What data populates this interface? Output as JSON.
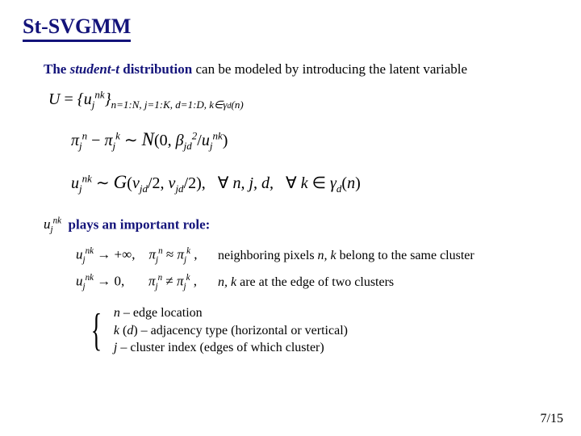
{
  "title": "St-SVGMM",
  "intro": {
    "pre": "The ",
    "em": "student-t",
    "post": " distribution",
    "tail": " can be modeled by introducing the latent variable"
  },
  "eq": {
    "U_def": "U = {u_j^{nk}}_{n=1:N, j=1:K, d=1:D, k∈γ_d(n)}",
    "diff": "π_j^n − π_j^k ∼ 𝒩(0, β_{jd}^2 / u_j^{nk})",
    "gamma": "u_j^{nk} ∼ 𝒢(ν_{jd}/2, ν_{jd}/2),   ∀ n, j, d,   ∀ k ∈ γ_d(n)"
  },
  "role": {
    "var": "u_j^{nk}",
    "text": "plays an important role:"
  },
  "cases": {
    "inf": {
      "lhs": "u_j^{nk} → +∞,",
      "mid": "π_j^n ≈ π_j^k ,",
      "txt_pre": "neighboring pixels ",
      "nk": "n, k",
      "txt_post": " belong to the same cluster"
    },
    "zero": {
      "lhs": "u_j^{nk} → 0,",
      "mid": "π_j^n ≠ π_j^k ,",
      "nk": "n, k",
      "txt": " are at the edge of two clusters"
    }
  },
  "legend": {
    "n": "n – edge location",
    "k": "k (d) – adjacency type (horizontal or vertical)",
    "j": "j – cluster index (edges of which cluster)"
  },
  "page": "7/15",
  "colors": {
    "accent": "#13137a",
    "text": "#000000",
    "bg": "#ffffff"
  }
}
